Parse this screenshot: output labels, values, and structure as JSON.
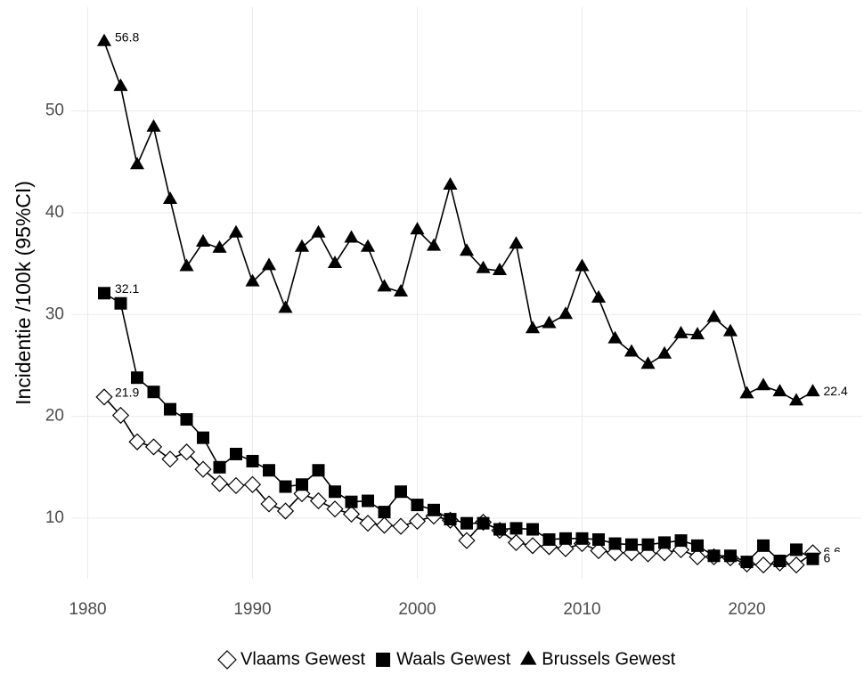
{
  "chart_data": {
    "type": "line",
    "y_label": "Incidentie /100k (95%CI)",
    "x": [
      1981,
      1982,
      1983,
      1984,
      1985,
      1986,
      1987,
      1988,
      1989,
      1990,
      1991,
      1992,
      1993,
      1994,
      1995,
      1996,
      1997,
      1998,
      1999,
      2000,
      2001,
      2002,
      2003,
      2004,
      2005,
      2006,
      2007,
      2008,
      2009,
      2010,
      2011,
      2012,
      2013,
      2014,
      2015,
      2016,
      2017,
      2018,
      2019,
      2020,
      2021,
      2022,
      2023,
      2024
    ],
    "series": [
      {
        "name": "Vlaams Gewest",
        "color": "#000000",
        "marker": "diamond",
        "values": [
          21.9,
          20.1,
          17.5,
          17.0,
          15.8,
          16.5,
          14.8,
          13.4,
          13.2,
          13.3,
          11.4,
          10.7,
          12.4,
          11.7,
          10.9,
          10.4,
          9.5,
          9.3,
          9.2,
          9.7,
          10.2,
          9.8,
          7.8,
          9.6,
          8.8,
          7.6,
          7.3,
          7.2,
          7.0,
          7.5,
          6.8,
          6.6,
          6.6,
          6.5,
          6.6,
          6.9,
          6.2,
          6.2,
          6.1,
          5.5,
          5.4,
          5.6,
          5.4,
          6.6
        ]
      },
      {
        "name": "Waals Gewest",
        "color": "#000000",
        "marker": "square",
        "values": [
          32.1,
          31.1,
          23.8,
          22.4,
          20.7,
          19.7,
          17.9,
          15.0,
          16.3,
          15.6,
          14.7,
          13.1,
          13.3,
          14.7,
          12.6,
          11.6,
          11.7,
          10.6,
          12.6,
          11.3,
          10.8,
          9.9,
          9.5,
          9.5,
          8.9,
          9.0,
          8.9,
          7.9,
          8.0,
          8.0,
          7.9,
          7.5,
          7.4,
          7.4,
          7.6,
          7.8,
          7.3,
          6.3,
          6.3,
          5.7,
          7.3,
          5.8,
          6.9,
          6
        ]
      },
      {
        "name": "Brussels Gewest",
        "color": "#000000",
        "marker": "triangle",
        "values": [
          56.8,
          52.4,
          44.7,
          48.4,
          41.3,
          34.7,
          37.1,
          36.5,
          38.0,
          33.2,
          34.8,
          30.6,
          36.6,
          38.0,
          35.0,
          37.5,
          36.6,
          32.7,
          32.2,
          38.3,
          36.7,
          42.7,
          36.2,
          34.5,
          34.3,
          36.9,
          28.6,
          29.1,
          30.0,
          34.7,
          31.6,
          27.6,
          26.3,
          25.1,
          26.1,
          28.1,
          28.0,
          29.7,
          28.3,
          22.2,
          23.0,
          22.4,
          21.5,
          22.4
        ]
      }
    ],
    "xlim": [
      1979,
      2027
    ],
    "xticks": [
      1980,
      1990,
      2000,
      2010,
      2020
    ],
    "ylim": [
      4.05,
      60.2
    ],
    "yticks": [
      10,
      20,
      30,
      40,
      50
    ],
    "grid": true,
    "legend": "bottom"
  }
}
